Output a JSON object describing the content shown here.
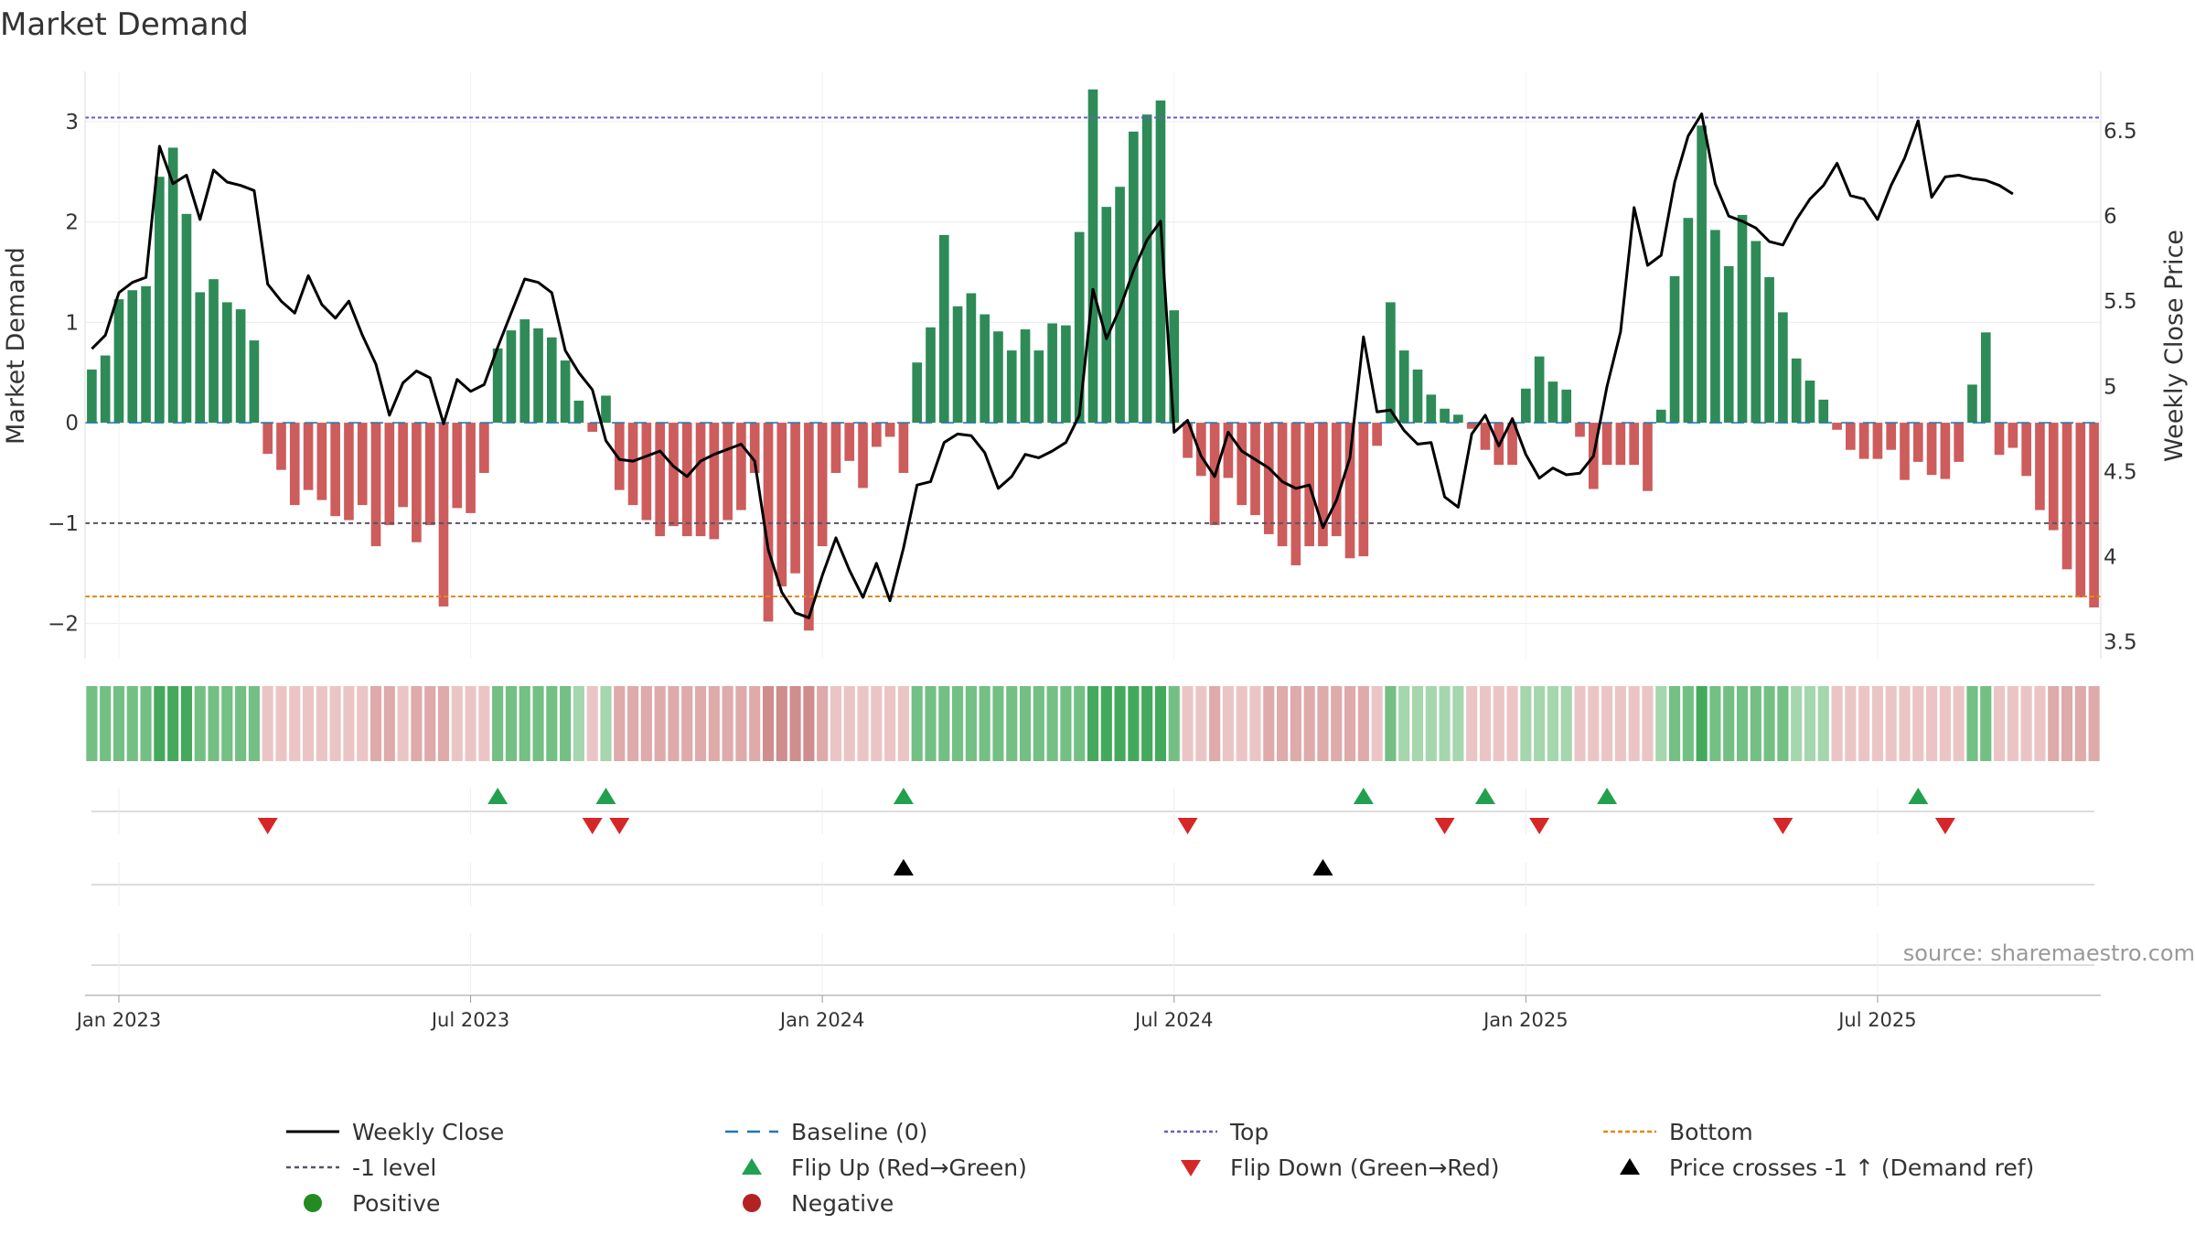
{
  "chart_data": {
    "type": "bar",
    "title": "Market Demand",
    "ylabel_left": "Market Demand",
    "ylabel_right": "Weekly Close Price",
    "ylim_left": [
      -2.35,
      3.5
    ],
    "ylim_right": [
      3.4,
      6.85
    ],
    "left_ticks": [
      {
        "v": 3,
        "label": "3"
      },
      {
        "v": 2,
        "label": "2"
      },
      {
        "v": 1,
        "label": "1"
      },
      {
        "v": 0,
        "label": "0"
      },
      {
        "v": -1,
        "label": "−1"
      },
      {
        "v": -2,
        "label": "−2"
      }
    ],
    "right_ticks": [
      {
        "v": 6.5,
        "label": "6.5"
      },
      {
        "v": 6,
        "label": "6"
      },
      {
        "v": 5.5,
        "label": "5.5"
      },
      {
        "v": 5,
        "label": "5"
      },
      {
        "v": 4.5,
        "label": "4.5"
      },
      {
        "v": 4,
        "label": "4"
      },
      {
        "v": 3.5,
        "label": "3.5"
      }
    ],
    "x_ticks": [
      {
        "w": 2.5,
        "label": "Jan 2023"
      },
      {
        "w": 28.5,
        "label": "Jul 2023"
      },
      {
        "w": 54.5,
        "label": "Jan 2024"
      },
      {
        "w": 80.5,
        "label": "Jul 2024"
      },
      {
        "w": 106.5,
        "label": "Jan 2025"
      },
      {
        "w": 132.5,
        "label": "Jul 2025"
      }
    ],
    "levels": {
      "top": 3.04,
      "minus_one": -1.0,
      "bottom": -1.73,
      "baseline": 0
    },
    "demand": [
      0.53,
      0.67,
      1.23,
      1.32,
      1.36,
      2.45,
      2.74,
      2.08,
      1.3,
      1.43,
      1.2,
      1.13,
      0.82,
      -0.31,
      -0.47,
      -0.82,
      -0.67,
      -0.77,
      -0.93,
      -0.97,
      -0.82,
      -1.23,
      -1.02,
      -0.84,
      -1.19,
      -1.02,
      -1.83,
      -0.85,
      -0.9,
      -0.5,
      0.74,
      0.92,
      1.03,
      0.94,
      0.85,
      0.62,
      0.22,
      -0.09,
      0.27,
      -0.67,
      -0.82,
      -0.97,
      -1.13,
      -1.03,
      -1.13,
      -1.13,
      -1.16,
      -0.97,
      -0.87,
      -0.5,
      -1.98,
      -1.63,
      -1.5,
      -2.07,
      -1.23,
      -0.5,
      -0.38,
      -0.65,
      -0.24,
      -0.14,
      -0.5,
      0.6,
      0.95,
      1.87,
      1.16,
      1.29,
      1.08,
      0.91,
      0.72,
      0.93,
      0.72,
      0.99,
      0.97,
      1.9,
      3.32,
      2.15,
      2.35,
      2.9,
      3.07,
      3.21,
      1.12,
      -0.35,
      -0.53,
      -1.02,
      -0.55,
      -0.82,
      -0.92,
      -1.11,
      -1.23,
      -1.42,
      -1.23,
      -1.23,
      -1.13,
      -1.35,
      -1.33,
      -0.23,
      1.2,
      0.72,
      0.53,
      0.28,
      0.14,
      0.08,
      -0.06,
      -0.27,
      -0.42,
      -0.42,
      0.34,
      0.66,
      0.41,
      0.33,
      -0.14,
      -0.66,
      -0.42,
      -0.42,
      -0.42,
      -0.68,
      0.13,
      1.46,
      2.04,
      2.96,
      1.92,
      1.56,
      2.07,
      1.81,
      1.45,
      1.1,
      0.64,
      0.42,
      0.23,
      -0.07,
      -0.27,
      -0.36,
      -0.36,
      -0.27,
      -0.57,
      -0.39,
      -0.52,
      -0.56,
      -0.39,
      0.38,
      0.9,
      -0.32,
      -0.25,
      -0.53,
      -0.87,
      -1.07,
      -1.46,
      -1.74,
      -1.84
    ],
    "price": [
      5.22,
      5.3,
      5.55,
      5.61,
      5.64,
      6.41,
      6.19,
      6.24,
      5.98,
      6.27,
      6.2,
      6.18,
      6.15,
      5.6,
      5.5,
      5.43,
      5.65,
      5.48,
      5.4,
      5.5,
      5.3,
      5.13,
      4.83,
      5.02,
      5.09,
      5.05,
      4.78,
      5.04,
      4.97,
      5.01,
      5.23,
      5.43,
      5.63,
      5.61,
      5.55,
      5.21,
      5.08,
      4.98,
      4.68,
      4.57,
      4.56,
      4.59,
      4.62,
      4.53,
      4.47,
      4.56,
      4.6,
      4.63,
      4.66,
      4.56,
      4.04,
      3.79,
      3.67,
      3.64,
      3.89,
      4.11,
      3.92,
      3.76,
      3.96,
      3.74,
      4.05,
      4.42,
      4.44,
      4.67,
      4.72,
      4.71,
      4.61,
      4.4,
      4.47,
      4.6,
      4.58,
      4.62,
      4.67,
      4.83,
      5.57,
      5.28,
      5.46,
      5.68,
      5.86,
      5.97,
      4.73,
      4.8,
      4.59,
      4.47,
      4.73,
      4.62,
      4.57,
      4.52,
      4.44,
      4.4,
      4.42,
      4.17,
      4.33,
      4.58,
      5.29,
      4.85,
      4.86,
      4.74,
      4.66,
      4.67,
      4.35,
      4.29,
      4.72,
      4.83,
      4.65,
      4.81,
      4.6,
      4.46,
      4.52,
      4.48,
      4.49,
      4.59,
      5.0,
      5.32,
      6.05,
      5.71,
      5.77,
      6.2,
      6.47,
      6.6,
      6.19,
      6.0,
      5.97,
      5.93,
      5.85,
      5.83,
      5.98,
      6.1,
      6.18,
      6.31,
      6.12,
      6.1,
      5.98,
      6.18,
      6.34,
      6.56,
      6.11,
      6.23,
      6.24,
      6.22,
      6.21,
      6.18,
      6.13
    ],
    "intensity_levels": [
      2,
      2,
      2,
      2,
      2,
      3,
      3,
      3,
      2,
      2,
      2,
      2,
      2,
      1,
      1,
      1,
      1,
      1,
      1,
      1,
      1,
      2,
      2,
      1,
      2,
      2,
      2,
      1,
      1,
      1,
      2,
      2,
      2,
      2,
      2,
      2,
      1,
      1,
      1,
      2,
      2,
      2,
      2,
      2,
      2,
      2,
      2,
      2,
      2,
      2,
      3,
      3,
      3,
      3,
      2,
      1,
      1,
      1,
      1,
      1,
      1,
      2,
      2,
      2,
      2,
      2,
      2,
      2,
      2,
      2,
      2,
      2,
      2,
      2,
      3,
      3,
      3,
      3,
      3,
      3,
      2,
      1,
      1,
      2,
      1,
      1,
      1,
      2,
      2,
      2,
      2,
      2,
      2,
      2,
      2,
      1,
      2,
      1,
      1,
      1,
      1,
      1,
      1,
      1,
      1,
      1,
      1,
      1,
      1,
      1,
      1,
      1,
      1,
      1,
      1,
      1,
      1,
      2,
      2,
      3,
      2,
      2,
      2,
      2,
      2,
      2,
      1,
      1,
      1,
      1,
      1,
      1,
      1,
      1,
      1,
      1,
      1,
      1,
      1,
      2,
      2,
      1,
      1,
      1,
      1,
      2,
      2,
      2,
      2
    ],
    "flip_up_weeks": [
      30,
      38,
      60,
      94,
      103,
      112,
      135
    ],
    "flip_down_weeks": [
      13,
      37,
      39,
      81,
      100,
      107,
      125,
      137
    ],
    "price_cross_weeks": [
      60,
      91
    ],
    "legend": [
      {
        "key": "weekly_close",
        "label": "Weekly Close"
      },
      {
        "key": "baseline",
        "label": "Baseline (0)"
      },
      {
        "key": "top",
        "label": "Top"
      },
      {
        "key": "bottom",
        "label": "Bottom"
      },
      {
        "key": "minus_one",
        "label": "-1 level"
      },
      {
        "key": "flip_up",
        "label": "Flip Up (Red→Green)"
      },
      {
        "key": "flip_down",
        "label": "Flip Down (Green→Red)"
      },
      {
        "key": "price_cross",
        "label": "Price crosses -1 ↑ (Demand ref)"
      },
      {
        "key": "positive",
        "label": "Positive"
      },
      {
        "key": "negative",
        "label": "Negative"
      }
    ],
    "source": "source: sharemaestro.com"
  },
  "colors": {
    "positive_bar": "#2e8b57",
    "negative_bar": "#cd5c5c",
    "price_line": "#000000",
    "baseline": "#1f77b4",
    "top": "#6a5acd",
    "minus_one": "#555566",
    "bottom": "#e08a14",
    "flip_up": "#22a050",
    "flip_down": "#d62728",
    "price_cross": "#000000",
    "positive_dot": "#228b22",
    "negative_dot": "#b22222"
  }
}
